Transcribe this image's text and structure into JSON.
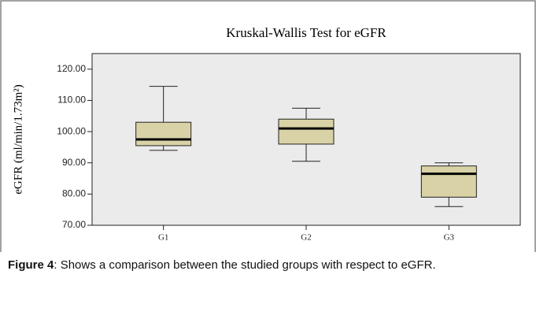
{
  "chart_data": {
    "type": "box",
    "title": "Kruskal-Wallis Test for eGFR",
    "ylabel": "eGFR (ml/min/1.73m²)",
    "categories": [
      "G1",
      "G2",
      "G3"
    ],
    "min": [
      94,
      90.5,
      76
    ],
    "q1": [
      95.5,
      96,
      79
    ],
    "median": [
      97.5,
      101,
      86.5
    ],
    "q3": [
      103,
      104,
      89
    ],
    "max": [
      114.5,
      107.5,
      90
    ],
    "color": "#d8d2a6",
    "ylim": [
      70,
      125
    ],
    "yticks": [
      {
        "value": 70,
        "label": "70.00"
      },
      {
        "value": 80,
        "label": "80.00"
      },
      {
        "value": 90,
        "label": "90.00"
      },
      {
        "value": 100,
        "label": "100.00"
      },
      {
        "value": 110,
        "label": "110.00"
      },
      {
        "value": 120,
        "label": "120.00"
      }
    ],
    "grid": false
  },
  "caption": {
    "label": "Figure 4",
    "text": ": Shows a comparison between the studied groups with respect to eGFR."
  }
}
